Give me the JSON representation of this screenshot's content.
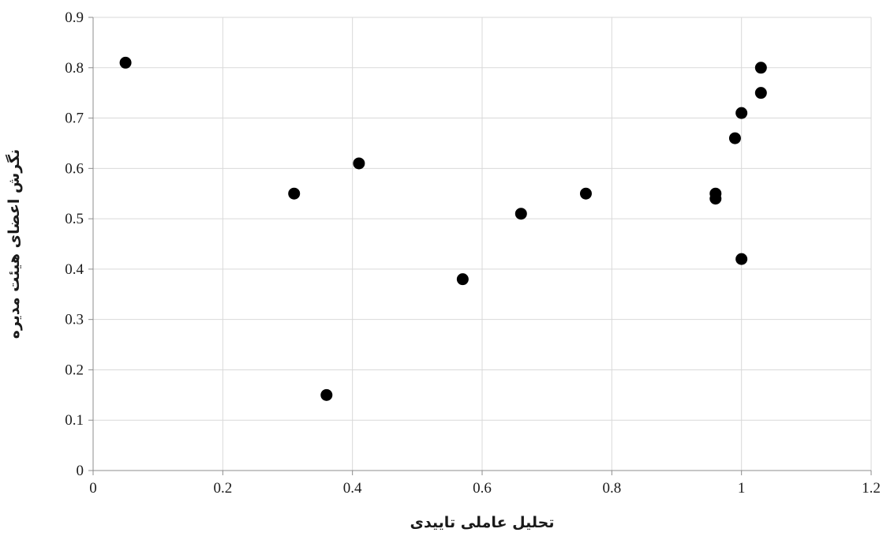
{
  "chart_data": {
    "type": "scatter",
    "title": "",
    "xlabel": "تحلیل عاملی تاییدی",
    "ylabel": "نگرش اعضای هیئت مدیره",
    "xlim": [
      0,
      1.2
    ],
    "ylim": [
      0,
      0.9
    ],
    "x_ticks": [
      "0",
      "0.2",
      "0.4",
      "0.6",
      "0.8",
      "1",
      "1.2"
    ],
    "y_ticks": [
      "0",
      "0.1",
      "0.2",
      "0.3",
      "0.4",
      "0.5",
      "0.6",
      "0.7",
      "0.8",
      "0.9"
    ],
    "grid": true,
    "legend": "none",
    "point_color": "#000000",
    "grid_color": "#d9d9d9",
    "axis_color": "#8c8c8c",
    "points": [
      {
        "x": 0.05,
        "y": 0.81
      },
      {
        "x": 0.31,
        "y": 0.55
      },
      {
        "x": 0.36,
        "y": 0.15
      },
      {
        "x": 0.41,
        "y": 0.61
      },
      {
        "x": 0.57,
        "y": 0.38
      },
      {
        "x": 0.66,
        "y": 0.51
      },
      {
        "x": 0.76,
        "y": 0.55
      },
      {
        "x": 0.96,
        "y": 0.55
      },
      {
        "x": 0.96,
        "y": 0.54
      },
      {
        "x": 0.99,
        "y": 0.66
      },
      {
        "x": 1.0,
        "y": 0.71
      },
      {
        "x": 1.0,
        "y": 0.42
      },
      {
        "x": 1.03,
        "y": 0.8
      },
      {
        "x": 1.03,
        "y": 0.75
      }
    ]
  }
}
